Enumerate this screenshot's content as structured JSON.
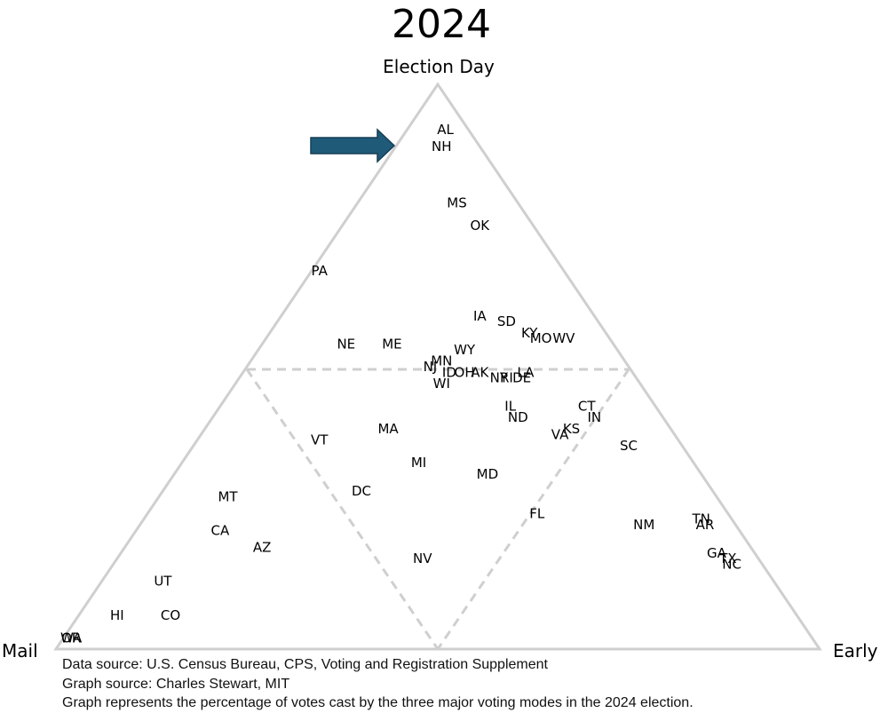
{
  "chart_data": {
    "type": "scatter",
    "subtype": "ternary",
    "title": "2024",
    "axes": {
      "top": "Election Day",
      "left": "Mail",
      "right": "Early"
    },
    "reference_lines": "dashed lines at 50% for each mode",
    "annotation": {
      "arrow_points_to": "NH"
    },
    "points": [
      {
        "label": "AL",
        "mail": 3,
        "early": 5,
        "election_day": 92
      },
      {
        "label": "NH",
        "mail": 5,
        "early": 6,
        "election_day": 89
      },
      {
        "label": "MS",
        "mail": 8,
        "early": 13,
        "election_day": 79
      },
      {
        "label": "OK",
        "mail": 7,
        "early": 18,
        "election_day": 75
      },
      {
        "label": "PA",
        "mail": 32,
        "early": 1,
        "election_day": 67
      },
      {
        "label": "IA",
        "mail": 15,
        "early": 26,
        "election_day": 59
      },
      {
        "label": "SD",
        "mail": 12,
        "early": 30,
        "election_day": 58
      },
      {
        "label": "KY",
        "mail": 10,
        "early": 34,
        "election_day": 56
      },
      {
        "label": "MO",
        "mail": 9,
        "early": 36,
        "election_day": 55
      },
      {
        "label": "WV",
        "mail": 6,
        "early": 39,
        "election_day": 55
      },
      {
        "label": "NE",
        "mail": 35,
        "early": 11,
        "election_day": 54
      },
      {
        "label": "ME",
        "mail": 29,
        "early": 17,
        "election_day": 54
      },
      {
        "label": "WY",
        "mail": 20,
        "early": 27,
        "election_day": 53
      },
      {
        "label": "MN",
        "mail": 24,
        "early": 25,
        "election_day": 51
      },
      {
        "label": "NJ",
        "mail": 26,
        "early": 24,
        "election_day": 50
      },
      {
        "label": "AK",
        "mail": 20,
        "early": 31,
        "election_day": 49
      },
      {
        "label": "LA",
        "mail": 14,
        "early": 37,
        "election_day": 49
      },
      {
        "label": "ID",
        "mail": 24,
        "early": 27,
        "election_day": 49
      },
      {
        "label": "OH",
        "mail": 22,
        "early": 29,
        "election_day": 49
      },
      {
        "label": "NY",
        "mail": 18,
        "early": 34,
        "election_day": 48
      },
      {
        "label": "RI",
        "mail": 17,
        "early": 35,
        "election_day": 48
      },
      {
        "label": "DE",
        "mail": 15,
        "early": 37,
        "election_day": 48
      },
      {
        "label": "WI",
        "mail": 26,
        "early": 27,
        "election_day": 47
      },
      {
        "label": "CT",
        "mail": 9,
        "early": 48,
        "election_day": 43
      },
      {
        "label": "IL",
        "mail": 19,
        "early": 38,
        "election_day": 43
      },
      {
        "label": "IN",
        "mail": 9,
        "early": 50,
        "election_day": 41
      },
      {
        "label": "ND",
        "mail": 19,
        "early": 40,
        "election_day": 41
      },
      {
        "label": "MA",
        "mail": 37,
        "early": 24,
        "election_day": 39
      },
      {
        "label": "KS",
        "mail": 13,
        "early": 48,
        "election_day": 39
      },
      {
        "label": "VA",
        "mail": 15,
        "early": 47,
        "election_day": 38
      },
      {
        "label": "SC",
        "mail": 7,
        "early": 57,
        "election_day": 36
      },
      {
        "label": "VT",
        "mail": 47,
        "early": 16,
        "election_day": 37
      },
      {
        "label": "MI",
        "mail": 36,
        "early": 31,
        "election_day": 33
      },
      {
        "label": "MD",
        "mail": 28,
        "early": 41,
        "election_day": 31
      },
      {
        "label": "FL",
        "mail": 25,
        "early": 51,
        "election_day": 24
      },
      {
        "label": "NM",
        "mail": 12,
        "early": 66,
        "election_day": 22
      },
      {
        "label": "TN",
        "mail": 4,
        "early": 73,
        "election_day": 23
      },
      {
        "label": "AR",
        "mail": 4,
        "early": 74,
        "election_day": 22
      },
      {
        "label": "GA",
        "mail": 5,
        "early": 78,
        "election_day": 17
      },
      {
        "label": "TX",
        "mail": 4,
        "early": 80,
        "election_day": 16
      },
      {
        "label": "NC",
        "mail": 4,
        "early": 81,
        "election_day": 15
      },
      {
        "label": "DC",
        "mail": 46,
        "early": 26,
        "election_day": 28
      },
      {
        "label": "MT",
        "mail": 64,
        "early": 9,
        "election_day": 27
      },
      {
        "label": "CA",
        "mail": 68,
        "early": 11,
        "election_day": 21
      },
      {
        "label": "AZ",
        "mail": 64,
        "early": 18,
        "election_day": 18
      },
      {
        "label": "NV",
        "mail": 44,
        "early": 40,
        "election_day": 16
      },
      {
        "label": "UT",
        "mail": 80,
        "early": 8,
        "election_day": 12
      },
      {
        "label": "CO",
        "mail": 82,
        "early": 12,
        "election_day": 6
      },
      {
        "label": "HI",
        "mail": 89,
        "early": 5,
        "election_day": 6
      },
      {
        "label": "WA",
        "mail": 97,
        "early": 1,
        "election_day": 2
      },
      {
        "label": "OR",
        "mail": 97,
        "early": 1,
        "election_day": 2
      }
    ]
  },
  "footer": {
    "data_source": "Data source: U.S. Census Bureau, CPS, Voting and Registration Supplement",
    "graph_source": "Graph source:  Charles Stewart, MIT",
    "description": "Graph represents the percentage of votes cast by the three major voting modes in the 2024 election."
  }
}
